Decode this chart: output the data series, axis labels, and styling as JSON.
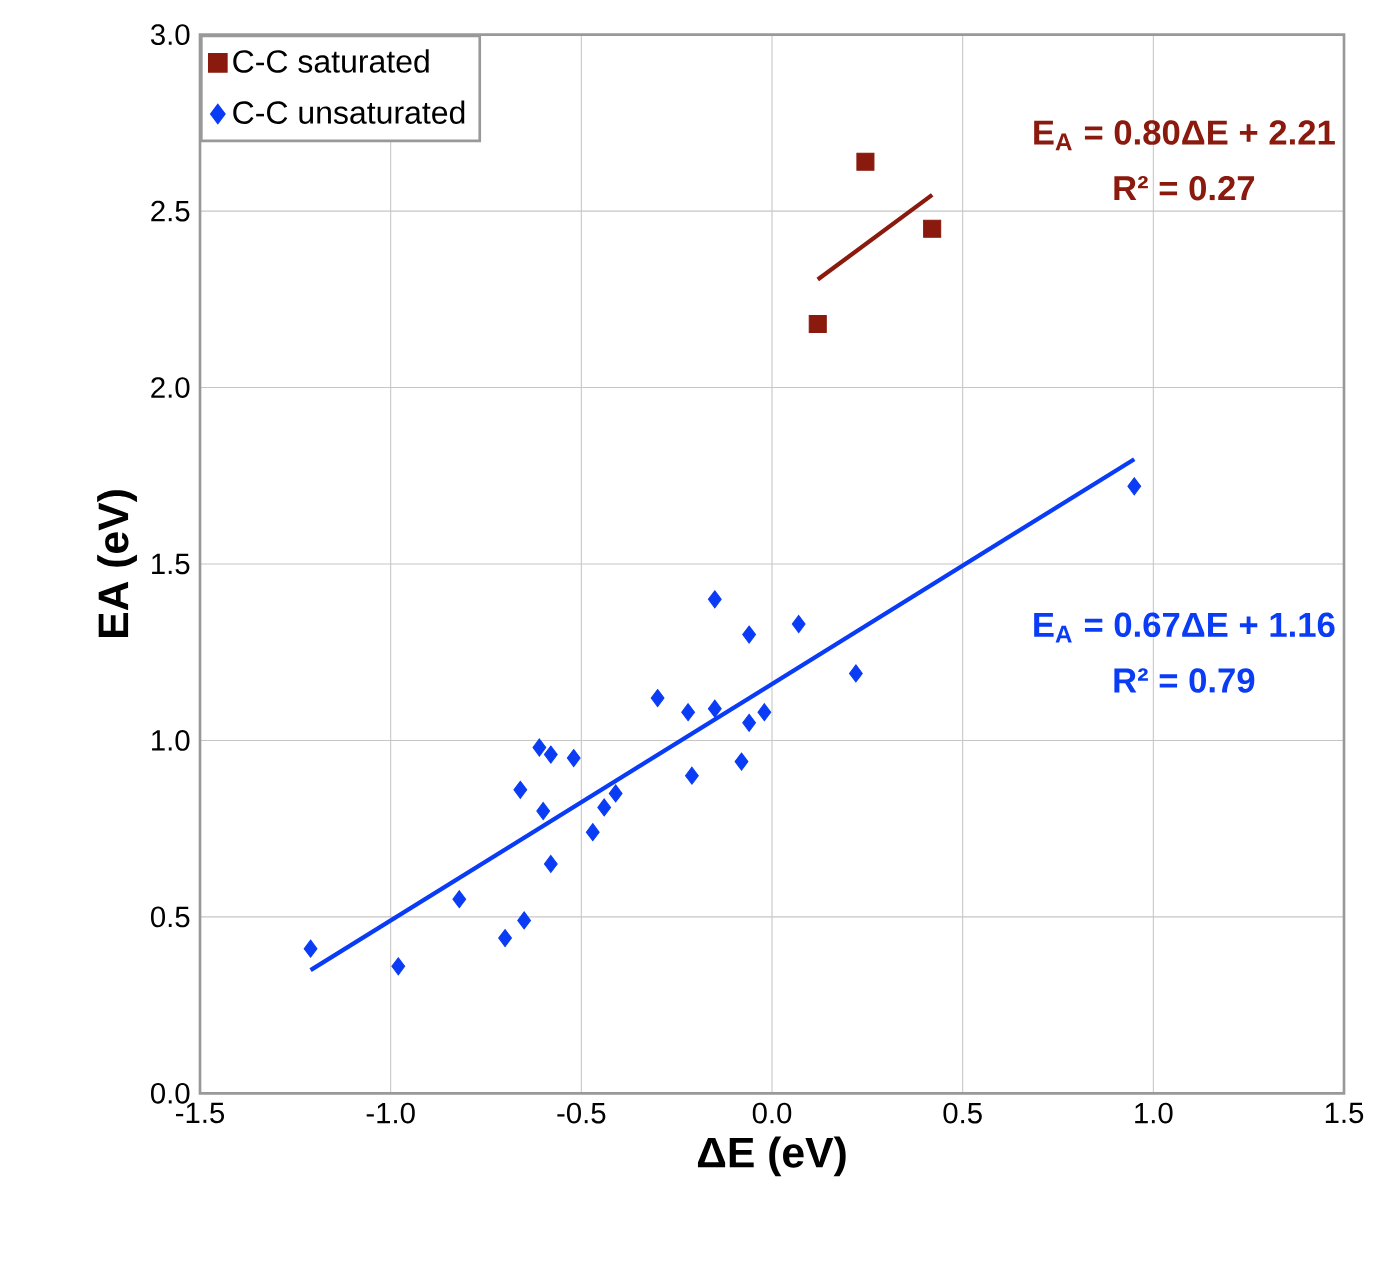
{
  "chart_data": {
    "type": "scatter",
    "xlabel": "ΔE (eV)",
    "ylabel": "EA (eV)",
    "xlim": [
      -1.5,
      1.5
    ],
    "xticks": [
      {
        "value": -1.5,
        "label": "-1.5"
      },
      {
        "value": -1.0,
        "label": "-1.0"
      },
      {
        "value": -0.5,
        "label": "-0.5"
      },
      {
        "value": 0,
        "label": "0.0"
      },
      {
        "value": 0.5,
        "label": "0.5"
      },
      {
        "value": 1.0,
        "label": "1.0"
      },
      {
        "value": 1.5,
        "label": "1.5"
      }
    ],
    "ylim": [
      0,
      3
    ],
    "yticks": [
      {
        "value": 0,
        "label": "0.0"
      },
      {
        "value": 0.5,
        "label": "0.5"
      },
      {
        "value": 1.0,
        "label": "1.0"
      },
      {
        "value": 1.5,
        "label": "1.5"
      },
      {
        "value": 2.0,
        "label": "2.0"
      },
      {
        "value": 2.5,
        "label": "2.5"
      },
      {
        "value": 3.0,
        "label": "3.0"
      }
    ],
    "grid": true,
    "legend": "top left",
    "series": [
      {
        "name": "C-C saturated",
        "marker": "square",
        "color": "#8b1a0e",
        "x": [
          0.245,
          0.42,
          0.12
        ],
        "values": [
          2.64,
          2.45,
          2.18
        ]
      },
      {
        "name": "C-C unsaturated",
        "marker": "diamond",
        "color": "#0a3cf5",
        "x": [
          -1.21,
          -0.98,
          -0.82,
          -0.7,
          -0.65,
          -0.66,
          -0.61,
          -0.58,
          -0.52,
          -0.6,
          -0.58,
          -0.47,
          -0.44,
          -0.41,
          -0.3,
          -0.22,
          -0.21,
          -0.15,
          -0.15,
          -0.06,
          0.07,
          -0.08,
          -0.06,
          -0.02,
          0.22,
          0.95
        ],
        "values": [
          0.41,
          0.36,
          0.55,
          0.44,
          0.49,
          0.86,
          0.98,
          0.96,
          0.95,
          0.8,
          0.65,
          0.74,
          0.81,
          0.85,
          1.12,
          1.08,
          0.9,
          1.09,
          1.4,
          1.3,
          1.33,
          0.94,
          1.05,
          1.08,
          1.19,
          1.72
        ]
      },
      {
        "type": "line",
        "marker": "none",
        "color": "#8b1a0e",
        "x": [
          0.12,
          0.42
        ],
        "values": [
          2.306,
          2.546
        ]
      },
      {
        "type": "line",
        "marker": "none",
        "color": "#0a3cf5",
        "x": [
          -1.21,
          0.95
        ],
        "values": [
          0.349,
          1.797
        ]
      }
    ],
    "annotations": [
      "E$_{A}$ = 0.80ΔE + 2.21",
      "R² = 0.27",
      "E$_{A}$ = 0.67ΔE + 1.16",
      "R² = 0.79"
    ]
  }
}
